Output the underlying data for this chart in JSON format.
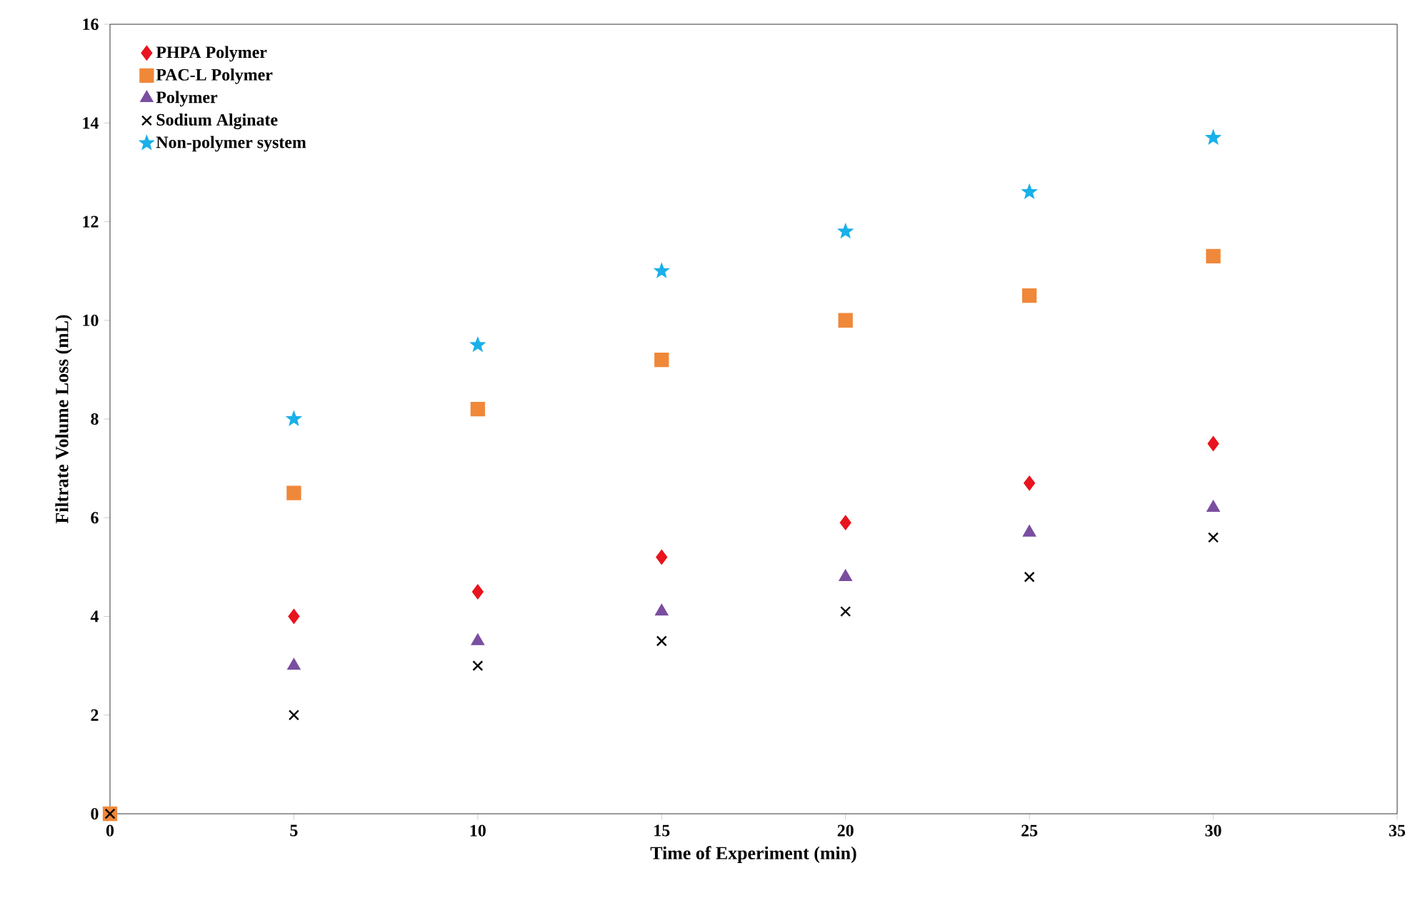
{
  "chart_data": {
    "type": "scatter",
    "xlabel": "Time of Experiment  (min)",
    "ylabel": "Filtrate Volume Loss (mL)",
    "x": [
      0,
      5,
      10,
      15,
      20,
      25,
      30
    ],
    "series": [
      {
        "name": "PHPA Polymer",
        "color": "#e8141e",
        "marker": "diamond",
        "values": [
          null,
          4.0,
          4.5,
          5.2,
          5.9,
          6.7,
          7.5
        ]
      },
      {
        "name": "PAC-L Polymer",
        "color": "#f0883a",
        "marker": "square",
        "values": [
          0,
          6.5,
          8.2,
          9.2,
          10.0,
          10.5,
          11.3
        ]
      },
      {
        "name": "Polymer",
        "color": "#7a4ea0",
        "marker": "triangle",
        "values": [
          null,
          3.0,
          3.5,
          4.1,
          4.8,
          5.7,
          6.2
        ]
      },
      {
        "name": "Sodium Alginate",
        "color": "#000000",
        "marker": "cross",
        "values": [
          0,
          2.0,
          3.0,
          3.5,
          4.1,
          4.8,
          5.6
        ]
      },
      {
        "name": "Non-polymer system",
        "color": "#1ab0e8",
        "marker": "star",
        "values": [
          null,
          8.0,
          9.5,
          11.0,
          11.8,
          12.6,
          13.7
        ]
      }
    ],
    "xlim": [
      0,
      35
    ],
    "xticks": [
      0,
      5,
      10,
      15,
      20,
      25,
      30,
      35
    ],
    "ylim": [
      0,
      16
    ],
    "yticks": [
      0,
      2,
      4,
      6,
      8,
      10,
      12,
      14,
      16
    ],
    "grid": false,
    "legend": "top left"
  }
}
